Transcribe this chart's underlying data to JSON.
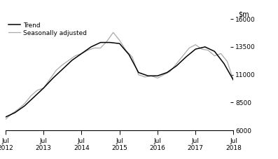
{
  "ylim": [
    6000,
    16000
  ],
  "yticks": [
    6000,
    8500,
    11000,
    13500,
    16000
  ],
  "xtick_labels": [
    "Jul\n2012",
    "Jul\n2013",
    "Jul\n2014",
    "Jul\n2015",
    "Jul\n2016",
    "Jul\n2017",
    "Jul\n2018"
  ],
  "trend_color": "#000000",
  "seasonal_color": "#aaaaaa",
  "background_color": "#ffffff",
  "legend_trend": "Trend",
  "legend_seasonal": "Seasonally adjusted",
  "trend_x": [
    0,
    0.25,
    0.5,
    0.75,
    1.0,
    1.25,
    1.5,
    1.75,
    2.0,
    2.25,
    2.5,
    2.75,
    3.0,
    3.25,
    3.5,
    3.75,
    4.0,
    4.25,
    4.5,
    4.75,
    5.0,
    5.25,
    5.5,
    5.75,
    6.0
  ],
  "trend_y": [
    7200,
    7600,
    8200,
    9000,
    9800,
    10700,
    11500,
    12300,
    12900,
    13500,
    13900,
    13900,
    13800,
    12800,
    11200,
    10900,
    10900,
    11200,
    11800,
    12600,
    13300,
    13500,
    13100,
    12000,
    10500
  ],
  "seasonal_x": [
    0,
    0.167,
    0.333,
    0.5,
    0.667,
    0.833,
    1.0,
    1.167,
    1.333,
    1.5,
    1.667,
    1.833,
    2.0,
    2.167,
    2.333,
    2.5,
    2.667,
    2.833,
    3.0,
    3.167,
    3.333,
    3.5,
    3.667,
    3.833,
    4.0,
    4.167,
    4.333,
    4.5,
    4.667,
    4.833,
    5.0,
    5.167,
    5.333,
    5.5,
    5.667,
    5.833,
    6.0
  ],
  "seasonal_y": [
    7000,
    7500,
    7900,
    8400,
    9100,
    9600,
    9800,
    10600,
    11400,
    11900,
    12300,
    12700,
    12900,
    13200,
    13400,
    13400,
    14000,
    14800,
    14100,
    13200,
    12600,
    11000,
    10800,
    10900,
    10700,
    11000,
    11300,
    12000,
    12700,
    13400,
    13700,
    13300,
    13200,
    12700,
    12900,
    12200,
    10500
  ]
}
